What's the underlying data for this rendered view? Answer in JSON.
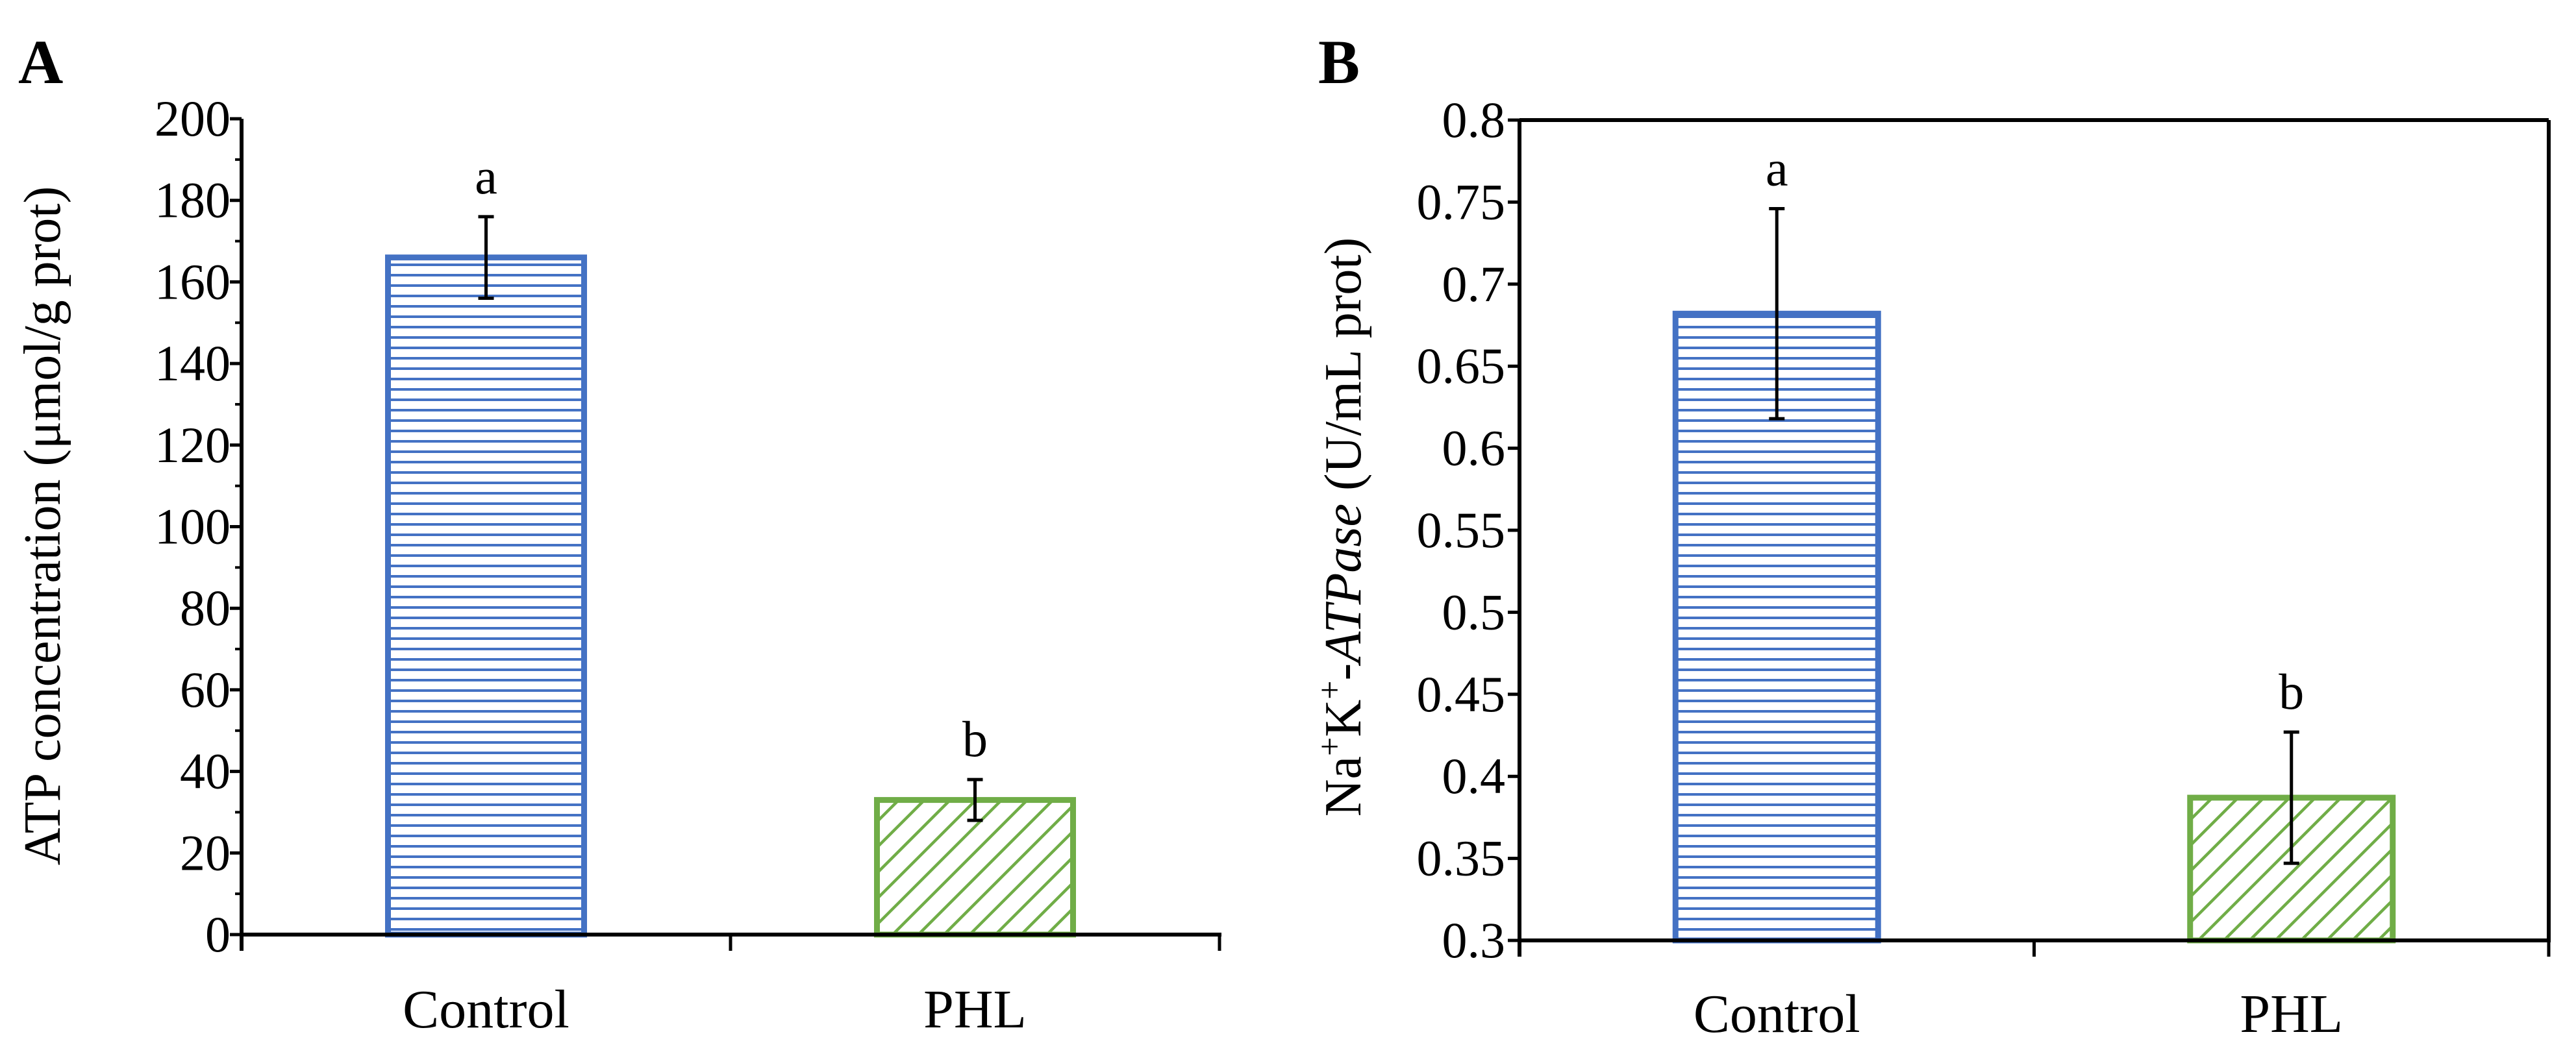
{
  "chart_data": [
    {
      "panel_label": "A",
      "type": "bar",
      "categories": [
        "Control",
        "PHL"
      ],
      "values": [
        166,
        33
      ],
      "errors": [
        10,
        5
      ],
      "significance": [
        "a",
        "b"
      ],
      "bar_colors": [
        "#4472c4",
        "#70ad47"
      ],
      "bar_patterns": [
        "horizontal",
        "diagonal"
      ],
      "ylabel": "ATP concentration (μmol/g prot)",
      "ylim": [
        0,
        200
      ],
      "yticks": [
        0,
        20,
        40,
        60,
        80,
        100,
        120,
        140,
        160,
        180,
        200
      ],
      "ytick_labels": [
        "0",
        "20",
        "40",
        "60",
        "80",
        "100",
        "120",
        "140",
        "160",
        "180",
        "200"
      ],
      "grid": false
    },
    {
      "panel_label": "B",
      "type": "bar",
      "categories": [
        "Control",
        "PHL"
      ],
      "values": [
        0.682,
        0.387
      ],
      "errors": [
        0.064,
        0.04
      ],
      "significance": [
        "a",
        "b"
      ],
      "bar_colors": [
        "#4472c4",
        "#70ad47"
      ],
      "bar_patterns": [
        "horizontal",
        "diagonal"
      ],
      "ylabel_parts": {
        "na": "Na",
        "na_sup": "+",
        "k": "K",
        "k_sup": "+",
        "dash": "-",
        "enzyme": "ATPase",
        "unit": " (U/mL prot)"
      },
      "ylim": [
        0.3,
        0.8
      ],
      "yticks": [
        0.3,
        0.35,
        0.4,
        0.45,
        0.5,
        0.55,
        0.6,
        0.65,
        0.7,
        0.75,
        0.8
      ],
      "ytick_labels": [
        "0.3",
        "0.35",
        "0.4",
        "0.45",
        "0.5",
        "0.55",
        "0.6",
        "0.65",
        "0.7",
        "0.75",
        "0.8"
      ],
      "grid": false
    }
  ]
}
